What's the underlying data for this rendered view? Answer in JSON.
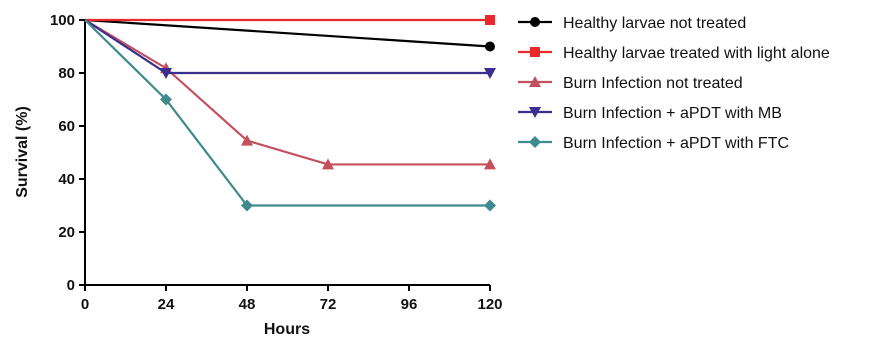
{
  "chart_data": {
    "type": "line",
    "xlabel": "Hours",
    "ylabel": "Survival (%)",
    "xlim": [
      0,
      120
    ],
    "ylim": [
      0,
      100
    ],
    "xticks": [
      0,
      24,
      48,
      72,
      96,
      120
    ],
    "yticks": [
      0,
      20,
      40,
      60,
      80,
      100
    ],
    "grid": false,
    "legend_position": "right",
    "series": [
      {
        "name": "Healthy larvae not treated",
        "color": "#000000",
        "marker": "circle",
        "x": [
          0,
          120
        ],
        "y": [
          100,
          90
        ]
      },
      {
        "name": "Healthy larvae treated with light alone",
        "color": "#e8282b",
        "marker": "square",
        "x": [
          0,
          120
        ],
        "y": [
          100,
          100
        ]
      },
      {
        "name": "Burn Infection not treated",
        "color": "#c4505e",
        "marker": "triangle-up",
        "x": [
          0,
          24,
          48,
          72,
          120
        ],
        "y": [
          100,
          81.8,
          54.5,
          45.5,
          45.5
        ]
      },
      {
        "name": "Burn Infection + aPDT with MB",
        "color": "#3a2f8c",
        "marker": "triangle-down",
        "x": [
          0,
          24,
          120
        ],
        "y": [
          100,
          80,
          80
        ]
      },
      {
        "name": "Burn Infection + aPDT with FTC",
        "color": "#3f8a8e",
        "marker": "diamond",
        "x": [
          0,
          24,
          48,
          120
        ],
        "y": [
          100,
          70,
          30,
          30
        ]
      }
    ]
  }
}
